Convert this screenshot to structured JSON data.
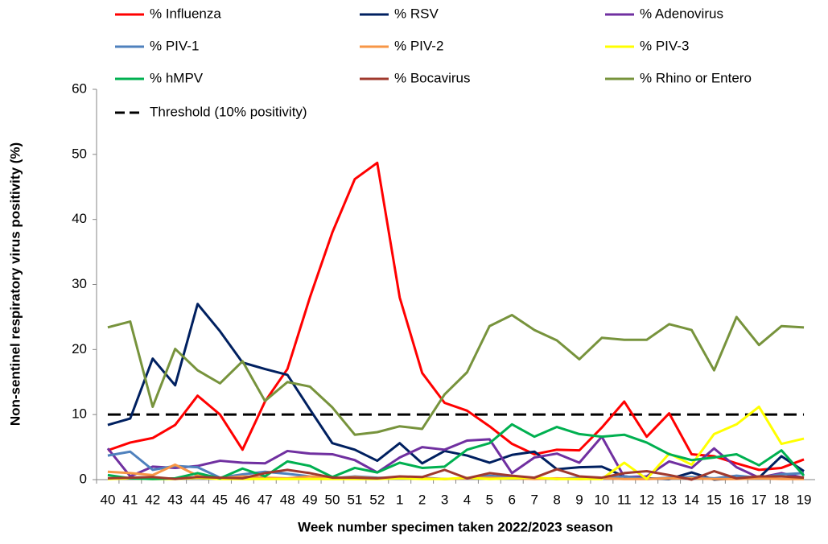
{
  "chart_data": {
    "type": "line",
    "x_label": "Week number specimen taken 2022/2023 season",
    "y_label": "Non-sentinel respiratory virus positivity (%)",
    "categories": [
      "40",
      "41",
      "42",
      "43",
      "44",
      "45",
      "46",
      "47",
      "48",
      "49",
      "50",
      "51",
      "52",
      "1",
      "2",
      "3",
      "4",
      "5",
      "6",
      "7",
      "8",
      "9",
      "10",
      "11",
      "12",
      "13",
      "14",
      "15",
      "16",
      "17",
      "18",
      "19"
    ],
    "ylim": [
      0,
      60
    ],
    "yticks": [
      0,
      10,
      20,
      30,
      40,
      50,
      60
    ],
    "grid": false,
    "series": [
      {
        "name": "% Influenza",
        "color": "#ff0000",
        "values": [
          4.5,
          5.7,
          6.4,
          8.4,
          12.9,
          10.0,
          4.6,
          12.0,
          17.0,
          28.0,
          38.0,
          46.2,
          48.7,
          28.0,
          16.4,
          11.8,
          10.6,
          8.2,
          5.5,
          3.9,
          4.6,
          4.5,
          8.0,
          12.0,
          6.6,
          10.2,
          3.9,
          3.6,
          2.5,
          1.5,
          1.8,
          3.1
        ]
      },
      {
        "name": "% RSV",
        "color": "#002060",
        "values": [
          8.4,
          9.4,
          18.6,
          14.5,
          27.0,
          22.8,
          18.0,
          17.0,
          16.1,
          10.8,
          5.6,
          4.6,
          2.9,
          5.6,
          2.5,
          4.4,
          3.7,
          2.6,
          3.8,
          4.3,
          1.6,
          1.9,
          2.0,
          0.5,
          0.2,
          0.1,
          1.1,
          0.0,
          0.2,
          0.3,
          3.6,
          1.3
        ]
      },
      {
        "name": "% Adenovirus",
        "color": "#7030a0",
        "values": [
          4.8,
          0.5,
          2.0,
          1.8,
          2.1,
          2.9,
          2.6,
          2.5,
          4.4,
          4.0,
          3.9,
          3.0,
          1.1,
          3.4,
          5.0,
          4.6,
          6.0,
          6.2,
          1.0,
          3.4,
          4.0,
          2.6,
          6.6,
          0.4,
          0.5,
          2.8,
          1.8,
          4.8,
          1.9,
          0.3,
          1.0,
          0.3
        ]
      },
      {
        "name": "% PIV-1",
        "color": "#4f81bd",
        "values": [
          3.7,
          4.3,
          1.5,
          2.1,
          1.9,
          0.3,
          0.8,
          1.2,
          0.9,
          0.5,
          0.2,
          0.5,
          0.3,
          0.2,
          0.3,
          0.1,
          0.2,
          0.6,
          0.3,
          0.2,
          0.1,
          0.3,
          0.2,
          0.5,
          0.1,
          0.3,
          0.4,
          0.2,
          0.6,
          0.3,
          0.8,
          1.0
        ]
      },
      {
        "name": "% PIV-2",
        "color": "#f79646",
        "values": [
          1.2,
          1.0,
          0.7,
          2.3,
          0.6,
          0.2,
          0.5,
          0.3,
          0.2,
          0.5,
          0.2,
          0.4,
          0.2,
          0.3,
          0.2,
          0.1,
          0.2,
          0.3,
          0.2,
          0.1,
          0.2,
          0.1,
          0.2,
          0.1,
          0.1,
          0.2,
          0.2,
          0.1,
          0.1,
          0.2,
          0.1,
          0.1
        ]
      },
      {
        "name": "% PIV-3",
        "color": "#ffff00",
        "values": [
          0.1,
          0.2,
          0.1,
          0.1,
          0.3,
          0.1,
          0.1,
          0.1,
          0.1,
          0.1,
          0.1,
          0.1,
          0.1,
          0.2,
          0.1,
          0.1,
          0.3,
          0.1,
          0.2,
          0.3,
          0.1,
          0.1,
          0.1,
          2.6,
          0.1,
          4.0,
          2.3,
          7.0,
          8.5,
          11.2,
          5.5,
          6.3
        ]
      },
      {
        "name": "% hMPV",
        "color": "#00b050",
        "values": [
          0.7,
          0.2,
          0.1,
          0.2,
          1.0,
          0.2,
          1.7,
          0.5,
          2.8,
          2.1,
          0.4,
          1.8,
          1.1,
          2.6,
          1.8,
          2.0,
          4.6,
          5.6,
          8.5,
          6.6,
          8.1,
          7.0,
          6.6,
          6.9,
          5.7,
          3.9,
          3.0,
          3.4,
          3.9,
          2.2,
          4.5,
          0.6
        ]
      },
      {
        "name": "% Bocavirus",
        "color": "#a0392d",
        "values": [
          0.2,
          0.3,
          0.4,
          0.1,
          0.4,
          0.3,
          0.2,
          1.0,
          1.5,
          1.0,
          0.3,
          0.3,
          0.2,
          0.5,
          0.4,
          1.5,
          0.2,
          1.0,
          0.6,
          0.3,
          1.6,
          0.5,
          0.3,
          1.0,
          1.3,
          0.7,
          0.0,
          1.3,
          0.2,
          0.5,
          0.5,
          0.3
        ]
      },
      {
        "name": "% Rhino or Entero",
        "color": "#77933c",
        "values": [
          23.4,
          24.3,
          11.2,
          20.1,
          16.8,
          14.8,
          18.2,
          12.1,
          15.0,
          14.3,
          11.1,
          6.9,
          7.3,
          8.2,
          7.8,
          13.1,
          16.5,
          23.6,
          25.3,
          23.0,
          21.4,
          18.5,
          21.8,
          21.5,
          21.5,
          23.9,
          23.0,
          16.8,
          25.0,
          20.7,
          23.6,
          23.4
        ]
      }
    ],
    "threshold": {
      "name": "Threshold (10% positivity)",
      "value": 10,
      "color": "#000000"
    }
  }
}
